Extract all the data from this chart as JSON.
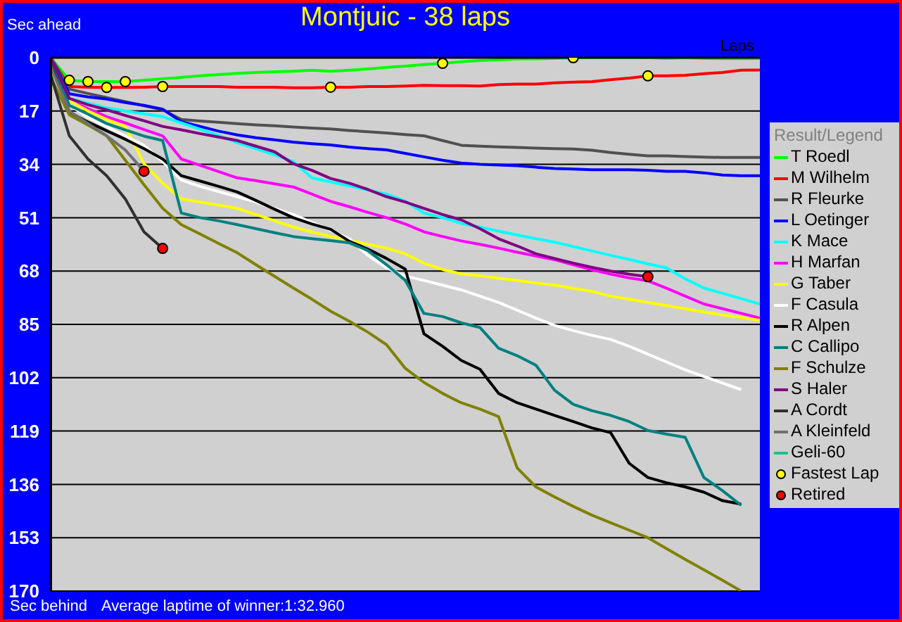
{
  "chart_data": {
    "type": "line",
    "title": "Montjuic - 38 laps",
    "xlabel": "Laps",
    "ylabel": "Sec ahead",
    "legend_title": "Result/Legend",
    "annotations": [
      "Sec behind",
      "Average laptime of winner:1:32.960"
    ],
    "categories": [
      null,
      null,
      null,
      null,
      null,
      null,
      null,
      null,
      null,
      null,
      null,
      null,
      null,
      null,
      null,
      null,
      null,
      null,
      null,
      null,
      null,
      null,
      null,
      null,
      null,
      null,
      null,
      null,
      null,
      null,
      null,
      null,
      null,
      null,
      null,
      null,
      null,
      null,
      null
    ],
    "ylim": [
      170,
      0
    ],
    "yticks": [
      0,
      17,
      34,
      51,
      68,
      85,
      102,
      119,
      136,
      153,
      170
    ],
    "grid": "y",
    "legend": "right",
    "tick_labels": "y",
    "series": [
      {
        "name": "T Roedl",
        "color": "#00ff00",
        "values": [
          0,
          7.2,
          7.6,
          7.6,
          7.6,
          7.2,
          6.7,
          6.3,
          5.8,
          5.4,
          5.0,
          4.7,
          4.5,
          4.3,
          4.0,
          4.3,
          4.0,
          3.6,
          3.1,
          2.7,
          2.2,
          1.8,
          1.3,
          0.9,
          0.7,
          0.4,
          0.4,
          0.2,
          0,
          0,
          0,
          0,
          0,
          0.2,
          0,
          0.2,
          0.3,
          0.3,
          0.3
        ]
      },
      {
        "name": "M Wilhelm",
        "color": "#ff0000",
        "values": [
          0,
          9.2,
          9.4,
          9.5,
          9.5,
          9.4,
          9.2,
          9.2,
          9.2,
          9.2,
          9.4,
          9.4,
          9.4,
          9.6,
          9.6,
          9.4,
          9.4,
          9.2,
          9.2,
          9.0,
          8.8,
          8.9,
          8.9,
          9.0,
          8.6,
          8.4,
          8.4,
          8.0,
          7.8,
          7.6,
          7.0,
          6.5,
          5.8,
          5.8,
          5.6,
          5.1,
          4.7,
          4.0,
          3.9
        ]
      },
      {
        "name": "R Fleurke",
        "color": "#505050",
        "values": [
          0,
          10,
          11.4,
          12.7,
          14,
          15.3,
          16.6,
          19.7,
          20.2,
          20.6,
          21,
          21.4,
          21.7,
          22.1,
          22.4,
          22.7,
          23.2,
          23.6,
          24,
          24.5,
          24.9,
          26.4,
          27.9,
          28.2,
          28.4,
          28.6,
          28.8,
          29,
          29.1,
          29.5,
          30.2,
          30.8,
          31.3,
          31.3,
          31.5,
          31.7,
          31.8,
          31.8,
          31.8
        ]
      },
      {
        "name": "L Oetinger",
        "color": "#0000ff",
        "values": [
          0,
          11.5,
          12.5,
          13.2,
          14.3,
          15.2,
          16.4,
          20.4,
          21.9,
          23.4,
          24.6,
          25.5,
          26.2,
          26.9,
          27.4,
          27.8,
          28.5,
          29,
          29.4,
          30.5,
          31.6,
          32.7,
          33.6,
          34,
          34.2,
          34.4,
          34.9,
          35.3,
          35.5,
          35.7,
          35.7,
          35.7,
          35.9,
          36.2,
          36.2,
          36.7,
          37.4,
          37.6,
          37.6
        ]
      },
      {
        "name": "K Mace",
        "color": "#00ffff",
        "values": [
          0,
          13,
          14.5,
          16,
          17,
          17.9,
          18.8,
          20.8,
          22.8,
          24.8,
          27.1,
          29,
          31,
          33.1,
          38.3,
          39.6,
          40.9,
          42.2,
          43.5,
          45.7,
          49.5,
          51,
          52.8,
          54,
          55.3,
          56.5,
          57.7,
          58.8,
          60.2,
          61.6,
          63,
          64.3,
          65.7,
          67,
          70.5,
          73.4,
          75.1,
          76.8,
          78.5
        ]
      },
      {
        "name": "H Marfan",
        "color": "#ff00ff",
        "values": [
          0,
          13.7,
          16.2,
          18.8,
          20.8,
          22.9,
          24.9,
          32.3,
          34.3,
          36.3,
          38.3,
          39.2,
          40.2,
          41.2,
          43.5,
          45.8,
          47.5,
          49.3,
          51,
          53,
          55.5,
          57,
          58.4,
          59.5,
          60.7,
          62,
          63.2,
          64.4,
          66,
          67.6,
          69,
          70.2,
          71.1,
          73.5,
          76,
          78.5,
          80,
          81.5,
          83
        ]
      },
      {
        "name": "G Taber",
        "color": "#ffff00",
        "values": [
          4,
          13.7,
          17,
          19.7,
          21.9,
          33.8,
          40,
          45,
          46,
          47,
          48,
          50,
          52,
          54,
          55.5,
          57,
          58.2,
          59.5,
          60.7,
          62.5,
          65.5,
          67.5,
          68.9,
          69.5,
          70.3,
          71,
          71.8,
          72.5,
          73.5,
          74.5,
          76,
          77,
          78,
          79,
          80,
          81,
          82,
          82.8,
          83.7
        ]
      },
      {
        "name": "F Casula",
        "color": "#ffffff",
        "values": [
          0,
          15,
          19,
          22,
          24.9,
          28,
          33.1,
          39,
          41,
          42.7,
          44.3,
          46,
          48,
          50,
          52.5,
          55,
          57.7,
          63,
          67,
          69.6,
          71,
          72.5,
          74,
          76,
          78,
          80.5,
          83,
          85.3,
          87,
          88.5,
          89.8,
          92,
          94.5,
          97,
          99.5,
          101.6,
          103.7,
          105.8,
          null
        ]
      },
      {
        "name": "R Alpen",
        "color": "#000000",
        "values": [
          0,
          17.4,
          20.5,
          23.3,
          26,
          29,
          32.3,
          37.6,
          39.3,
          41,
          42.8,
          45.5,
          48.3,
          51,
          53,
          54.7,
          58.5,
          61,
          64,
          67.4,
          88,
          92,
          96.5,
          99.3,
          107,
          110,
          112,
          114,
          116,
          118,
          119.5,
          129.3,
          133.8,
          135.5,
          136.8,
          138.5,
          141.2,
          142.3,
          null
        ]
      },
      {
        "name": "C Callipo",
        "color": "#008080",
        "values": [
          0,
          15.2,
          18,
          21,
          23,
          25,
          26.4,
          49.5,
          51,
          52,
          53.2,
          54.5,
          55.8,
          57,
          57.7,
          58.3,
          59,
          61.5,
          66,
          71,
          81.5,
          82.5,
          84.5,
          86,
          92.6,
          95,
          98,
          106,
          110.5,
          112.5,
          114,
          116,
          118.8,
          120,
          121,
          133.8,
          138,
          142.7,
          null
        ]
      },
      {
        "name": "F Schulze",
        "color": "#808000",
        "values": [
          6.3,
          18.2,
          21.5,
          24.9,
          32.7,
          40.5,
          48,
          53.2,
          56.2,
          59.2,
          62.2,
          66,
          69.7,
          73.4,
          77,
          80.8,
          84,
          87.5,
          91.5,
          99,
          103.5,
          107,
          110,
          112,
          114.4,
          130.8,
          136.8,
          140,
          143,
          145.8,
          148.2,
          150.6,
          153,
          156.5,
          159.9,
          163.2,
          166.6,
          170,
          null
        ]
      },
      {
        "name": "S Haler",
        "color": "#800080",
        "values": [
          0,
          13,
          15,
          16.6,
          18.4,
          20.1,
          21.9,
          23,
          24.2,
          25.3,
          26.4,
          28.2,
          30,
          33.8,
          35.9,
          38.5,
          40,
          42,
          44.3,
          46,
          48,
          50,
          51.7,
          54.5,
          57.7,
          60,
          62.5,
          64,
          65.5,
          66.8,
          68,
          69,
          69.8,
          null,
          null,
          null,
          null,
          null,
          null
        ]
      },
      {
        "name": "A Cordt",
        "color": "#303030",
        "values": [
          5.4,
          24.9,
          32.3,
          37.6,
          45,
          55.5,
          60.8,
          null,
          null,
          null,
          null,
          null,
          null,
          null,
          null,
          null,
          null,
          null,
          null,
          null,
          null,
          null,
          null,
          null,
          null,
          null,
          null,
          null,
          null,
          null,
          null,
          null,
          null,
          null,
          null,
          null,
          null,
          null,
          null
        ]
      },
      {
        "name": "A Kleinfeld",
        "color": "#707070",
        "values": [
          3,
          17,
          21,
          24.9,
          29.4,
          36.2,
          null,
          null,
          null,
          null,
          null,
          null,
          null,
          null,
          null,
          null,
          null,
          null,
          null,
          null,
          null,
          null,
          null,
          null,
          null,
          null,
          null,
          null,
          null,
          null,
          null,
          null,
          null,
          null,
          null,
          null,
          null,
          null,
          null
        ]
      },
      {
        "name": "Geli-60",
        "color": "#20c090",
        "values": [
          null,
          null,
          null,
          null,
          null,
          null,
          null,
          null,
          null,
          null,
          null,
          null,
          null,
          null,
          null,
          null,
          null,
          null,
          null,
          null,
          null,
          null,
          null,
          null,
          null,
          null,
          null,
          null,
          null,
          null,
          null,
          null,
          null,
          null,
          null,
          null,
          null,
          null,
          null
        ]
      },
      {
        "name": "Fastest Lap",
        "type": "scatter",
        "marker": "circle",
        "color": "#ffff00",
        "values": [
          null,
          7.2,
          7.6,
          9.5,
          7.6,
          null,
          9.2,
          null,
          null,
          null,
          null,
          null,
          null,
          null,
          null,
          9.4,
          null,
          null,
          null,
          null,
          null,
          1.8,
          null,
          null,
          null,
          null,
          null,
          null,
          0,
          null,
          null,
          null,
          5.8,
          null,
          null,
          null,
          null,
          null,
          null
        ]
      },
      {
        "name": "Retired",
        "type": "scatter",
        "marker": "circle",
        "color": "#ff0000",
        "values": [
          null,
          null,
          null,
          null,
          null,
          36.2,
          60.8,
          null,
          null,
          null,
          null,
          null,
          null,
          null,
          null,
          null,
          null,
          null,
          null,
          null,
          null,
          null,
          null,
          null,
          null,
          null,
          null,
          null,
          null,
          null,
          null,
          null,
          69.8,
          null,
          null,
          null,
          null,
          null,
          null
        ]
      }
    ]
  }
}
